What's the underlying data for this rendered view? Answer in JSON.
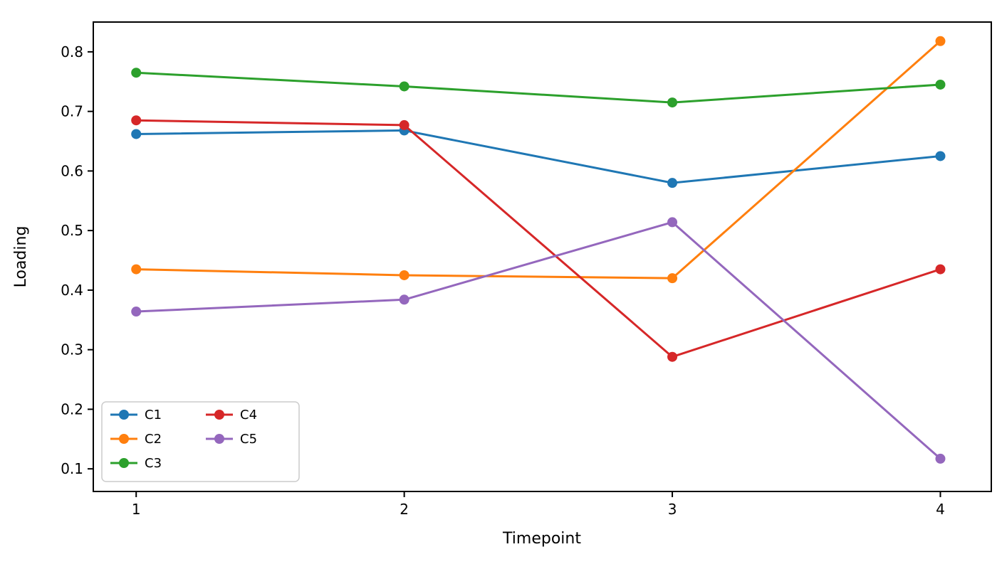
{
  "chart_data": {
    "type": "line",
    "title": "",
    "xlabel": "Timepoint",
    "ylabel": "Loading",
    "x": [
      1,
      2,
      3,
      4
    ],
    "series": [
      {
        "name": "C1",
        "color": "#1f77b4",
        "values": [
          0.662,
          0.668,
          0.58,
          0.625
        ]
      },
      {
        "name": "C2",
        "color": "#ff7f0e",
        "values": [
          0.435,
          0.425,
          0.42,
          0.818
        ]
      },
      {
        "name": "C3",
        "color": "#2ca02c",
        "values": [
          0.765,
          0.742,
          0.715,
          0.745
        ]
      },
      {
        "name": "C4",
        "color": "#d62728",
        "values": [
          0.685,
          0.677,
          0.288,
          0.435
        ]
      },
      {
        "name": "C5",
        "color": "#9467bd",
        "values": [
          0.364,
          0.384,
          0.514,
          0.117
        ]
      }
    ],
    "xlim": [
      0.84,
      4.19
    ],
    "ylim": [
      0.062,
      0.85
    ],
    "xticks": [
      1,
      2,
      3,
      4
    ],
    "yticks": [
      0.1,
      0.2,
      0.3,
      0.4,
      0.5,
      0.6,
      0.7,
      0.8
    ],
    "grid": false,
    "legend_position": "lower-left",
    "legend_columns": 2,
    "marker": "circle",
    "line_width": 3,
    "marker_radius": 7,
    "frame_color": "#000000",
    "legend_border_color": "#cccccc"
  }
}
